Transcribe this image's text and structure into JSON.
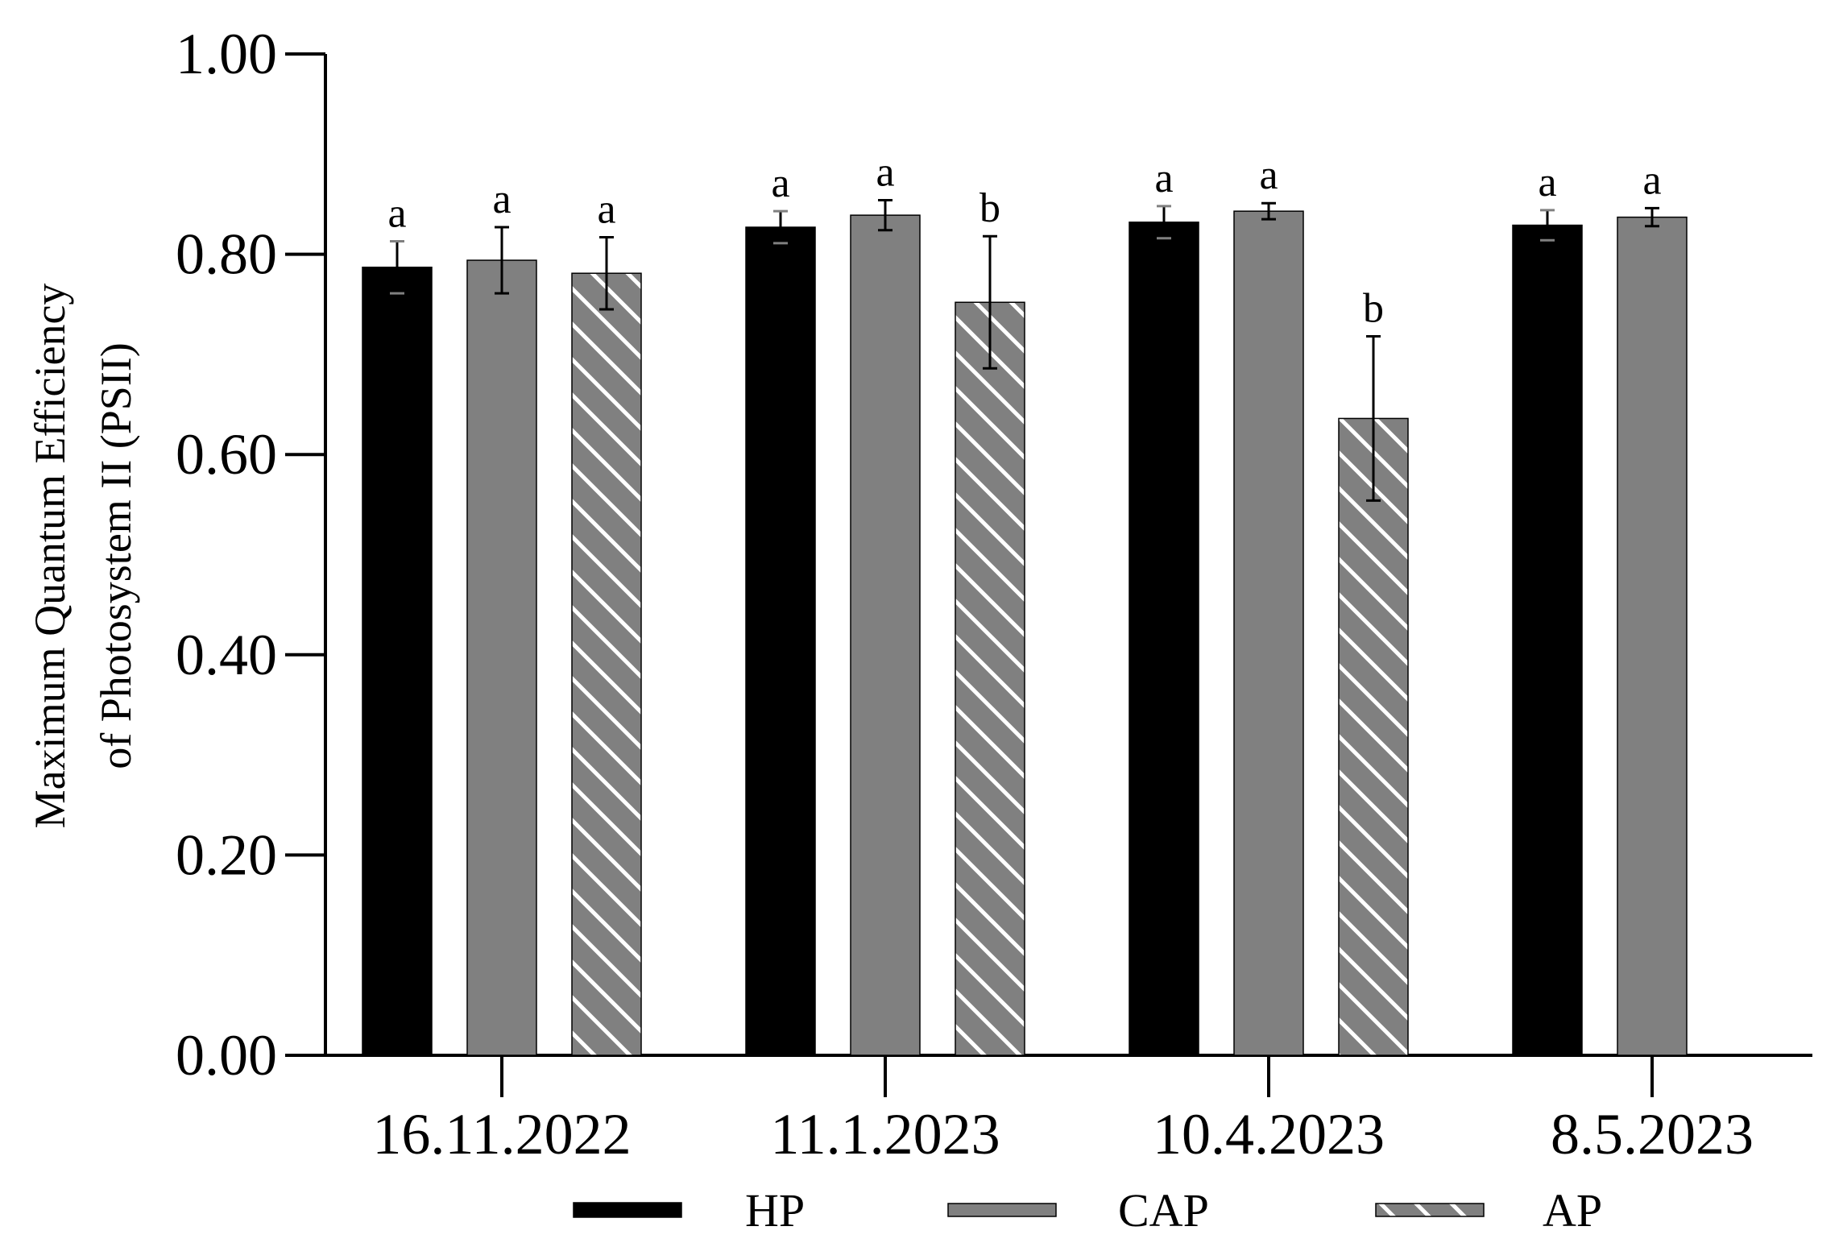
{
  "chart_data": {
    "type": "bar",
    "ylabel_lines": [
      "Maximum Quantum Efficiency",
      "of Photosystem II (PSII)"
    ],
    "ylim": [
      0,
      1.0
    ],
    "yticks": [
      "0.00",
      "0.20",
      "0.40",
      "0.60",
      "0.80",
      "1.00"
    ],
    "categories": [
      "16.11.2022",
      "11.1.2023",
      "10.4.2023",
      "8.5.2023"
    ],
    "grid": false,
    "legend_position": "bottom",
    "series": [
      {
        "name": "HP",
        "color": "#000000",
        "pattern": "solid",
        "values": [
          0.787,
          0.827,
          0.832,
          0.829
        ],
        "errors": [
          0.026,
          0.016,
          0.016,
          0.015
        ],
        "letters": [
          "a",
          "a",
          "a",
          "a"
        ]
      },
      {
        "name": "CAP",
        "color": "#808080",
        "pattern": "solid",
        "values": [
          0.794,
          0.839,
          0.843,
          0.837
        ],
        "errors": [
          0.033,
          0.015,
          0.008,
          0.009
        ],
        "letters": [
          "a",
          "a",
          "a",
          "a"
        ]
      },
      {
        "name": "AP",
        "color": "#808080",
        "pattern": "diagonal-white-hatch",
        "values": [
          0.781,
          0.752,
          0.636,
          null
        ],
        "errors": [
          0.036,
          0.066,
          0.082,
          null
        ],
        "letters": [
          "a",
          "b",
          "b",
          null
        ]
      }
    ]
  }
}
